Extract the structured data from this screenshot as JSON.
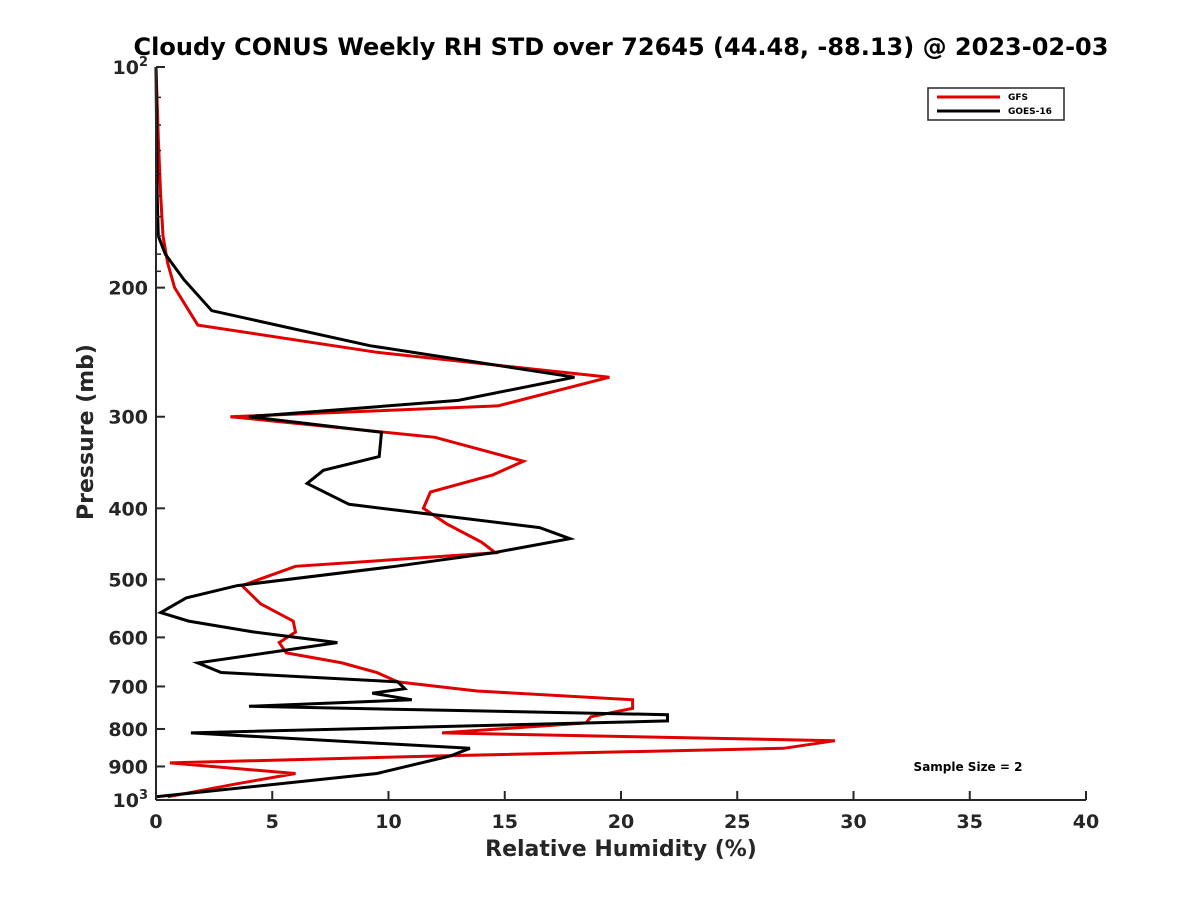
{
  "chart_data": {
    "type": "line",
    "title": "Cloudy CONUS Weekly RH STD over 72645 (44.48, -88.13) @ 2023-02-03",
    "xlabel": "Relative Humidity (%)",
    "ylabel": "Pressure (mb)",
    "xlim": [
      0,
      40
    ],
    "ylim": [
      100,
      1000
    ],
    "y_scale": "log",
    "y_reversed": true,
    "x_ticks": [
      "0",
      "5",
      "10",
      "15",
      "20",
      "25",
      "30",
      "35",
      "40"
    ],
    "y_ticks": [
      {
        "value": 100,
        "base": "10",
        "exp": "2"
      },
      {
        "value": 200,
        "label": "200"
      },
      {
        "value": 300,
        "label": "300"
      },
      {
        "value": 400,
        "label": "400"
      },
      {
        "value": 500,
        "label": "500"
      },
      {
        "value": 600,
        "label": "600"
      },
      {
        "value": 700,
        "label": "700"
      },
      {
        "value": 800,
        "label": "800"
      },
      {
        "value": 900,
        "label": "900"
      },
      {
        "value": 1000,
        "base": "10",
        "exp": "3"
      }
    ],
    "grid": false,
    "legend_position": "top-right",
    "annotation": "Sample Size = 2",
    "series": [
      {
        "name": "GFS",
        "color": "#e00000",
        "points": [
          [
            0,
            100
          ],
          [
            0.1,
            125
          ],
          [
            0.2,
            150
          ],
          [
            0.3,
            170
          ],
          [
            0.5,
            185
          ],
          [
            0.8,
            200
          ],
          [
            1.8,
            225
          ],
          [
            9.5,
            245
          ],
          [
            19.5,
            265
          ],
          [
            14.7,
            290
          ],
          [
            3.2,
            300
          ],
          [
            12.0,
            320
          ],
          [
            15.8,
            345
          ],
          [
            14.5,
            360
          ],
          [
            11.8,
            380
          ],
          [
            11.5,
            400
          ],
          [
            12.5,
            420
          ],
          [
            14.0,
            445
          ],
          [
            14.6,
            460
          ],
          [
            6.0,
            480
          ],
          [
            3.7,
            510
          ],
          [
            4.5,
            540
          ],
          [
            5.9,
            570
          ],
          [
            6.0,
            590
          ],
          [
            5.3,
            610
          ],
          [
            5.6,
            630
          ],
          [
            8.0,
            650
          ],
          [
            9.5,
            670
          ],
          [
            10.4,
            690
          ],
          [
            13.8,
            710
          ],
          [
            20.5,
            730
          ],
          [
            20.5,
            750
          ],
          [
            18.7,
            770
          ],
          [
            18.5,
            785
          ],
          [
            12.3,
            810
          ],
          [
            29.2,
            830
          ],
          [
            27.0,
            850
          ],
          [
            12.5,
            870
          ],
          [
            0.6,
            890
          ],
          [
            6.0,
            920
          ],
          [
            3.5,
            950
          ],
          [
            0.5,
            990
          ]
        ]
      },
      {
        "name": "GOES-16",
        "color": "#000000",
        "points": [
          [
            0,
            100
          ],
          [
            0.05,
            150
          ],
          [
            0.1,
            170
          ],
          [
            0.4,
            180
          ],
          [
            1.2,
            195
          ],
          [
            2.4,
            215
          ],
          [
            9.2,
            240
          ],
          [
            18.0,
            265
          ],
          [
            13.0,
            285
          ],
          [
            4.0,
            300
          ],
          [
            9.7,
            315
          ],
          [
            9.6,
            340
          ],
          [
            7.2,
            355
          ],
          [
            6.5,
            370
          ],
          [
            8.3,
            395
          ],
          [
            16.5,
            425
          ],
          [
            17.8,
            440
          ],
          [
            14.5,
            460
          ],
          [
            10.3,
            480
          ],
          [
            3.5,
            510
          ],
          [
            1.3,
            530
          ],
          [
            0.2,
            555
          ],
          [
            1.4,
            570
          ],
          [
            4.2,
            590
          ],
          [
            7.8,
            610
          ],
          [
            1.8,
            650
          ],
          [
            2.8,
            670
          ],
          [
            10.4,
            690
          ],
          [
            10.7,
            705
          ],
          [
            9.3,
            715
          ],
          [
            11.0,
            730
          ],
          [
            4.0,
            745
          ],
          [
            22.0,
            765
          ],
          [
            22.0,
            780
          ],
          [
            1.5,
            810
          ],
          [
            13.5,
            850
          ],
          [
            12.7,
            870
          ],
          [
            9.5,
            920
          ],
          [
            0.0,
            990
          ]
        ]
      }
    ]
  }
}
